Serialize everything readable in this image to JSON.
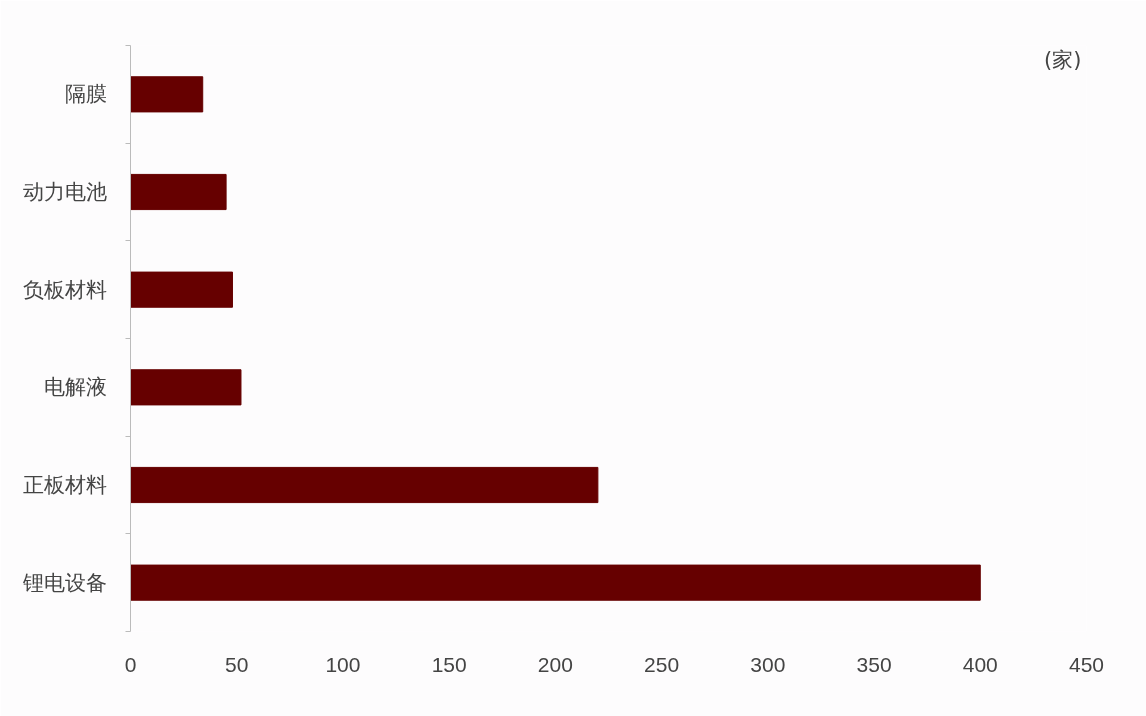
{
  "chart_data": {
    "type": "bar",
    "orientation": "horizontal",
    "categories": [
      "隔膜",
      "动力电池",
      "负板材料",
      "电解液",
      "正板材料",
      "锂电设备"
    ],
    "values": [
      34,
      45,
      48,
      52,
      220,
      400
    ],
    "color": "#660000",
    "xlim": [
      0,
      450
    ],
    "xticks": [
      0,
      50,
      100,
      150,
      200,
      250,
      300,
      350,
      400,
      450
    ],
    "grid": false,
    "annotations": [
      "(家)"
    ]
  }
}
